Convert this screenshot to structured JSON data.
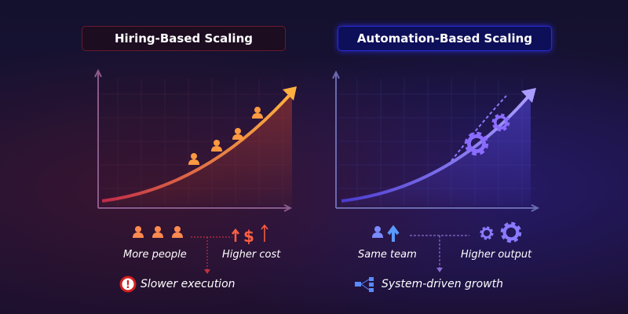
{
  "left": {
    "title": "Hiring-Based Scaling",
    "label_people": "More people",
    "label_cost": "Higher cost",
    "label_result": "Slower execution",
    "accent": "#ff8a3d",
    "icons": [
      "people-icon",
      "dollar-up-icon",
      "warning-icon"
    ]
  },
  "right": {
    "title": "Automation-Based Scaling",
    "label_team": "Same team",
    "label_output": "Higher output",
    "label_result": "System-driven growth",
    "accent": "#7a6cff",
    "icons": [
      "person-up-icon",
      "gears-icon",
      "network-icon"
    ]
  }
}
